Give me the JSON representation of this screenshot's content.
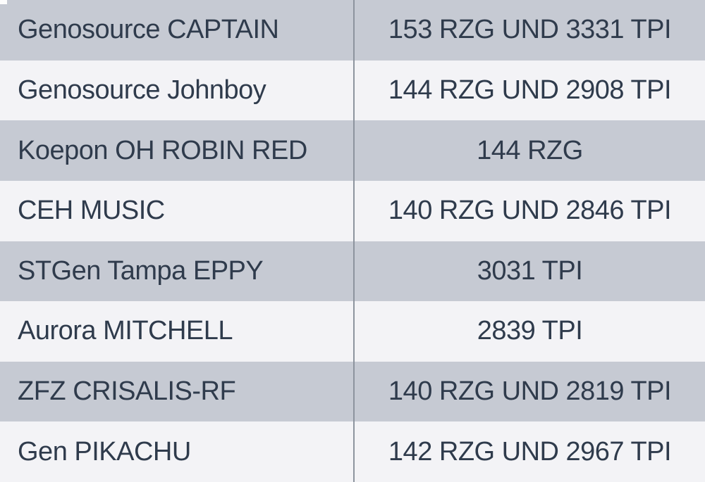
{
  "chart_data": {
    "type": "table",
    "title": "",
    "columns": [
      "bull_name",
      "index_values"
    ],
    "rows": [
      {
        "name": "Genosource CAPTAIN",
        "value": "153 RZG UND 3331 TPI",
        "rzg": 153,
        "tpi": 3331
      },
      {
        "name": "Genosource Johnboy",
        "value": "144 RZG UND 2908 TPI",
        "rzg": 144,
        "tpi": 2908
      },
      {
        "name": "Koepon OH ROBIN RED",
        "value": "144 RZG",
        "rzg": 144,
        "tpi": null
      },
      {
        "name": "CEH MUSIC",
        "value": "140 RZG UND 2846 TPI",
        "rzg": 140,
        "tpi": 2846
      },
      {
        "name": "STGen Tampa EPPY",
        "value": "3031 TPI",
        "rzg": null,
        "tpi": 3031
      },
      {
        "name": "Aurora MITCHELL",
        "value": "2839 TPI",
        "rzg": null,
        "tpi": 2839
      },
      {
        "name": "ZFZ CRISALIS-RF",
        "value": "140 RZG UND 2819 TPI",
        "rzg": 140,
        "tpi": 2819
      },
      {
        "name": "Gen PIKACHU",
        "value": "142 RZG UND 2967 TPI",
        "rzg": 142,
        "tpi": 2967
      }
    ],
    "layout_hints": {
      "striped": true,
      "value_column_alignment": "center",
      "name_column_alignment": "left"
    }
  },
  "colors": {
    "row_dark": "#c6cad3",
    "row_light": "#f3f3f6",
    "divider": "#8d949e",
    "text": "#2f3b4c"
  }
}
